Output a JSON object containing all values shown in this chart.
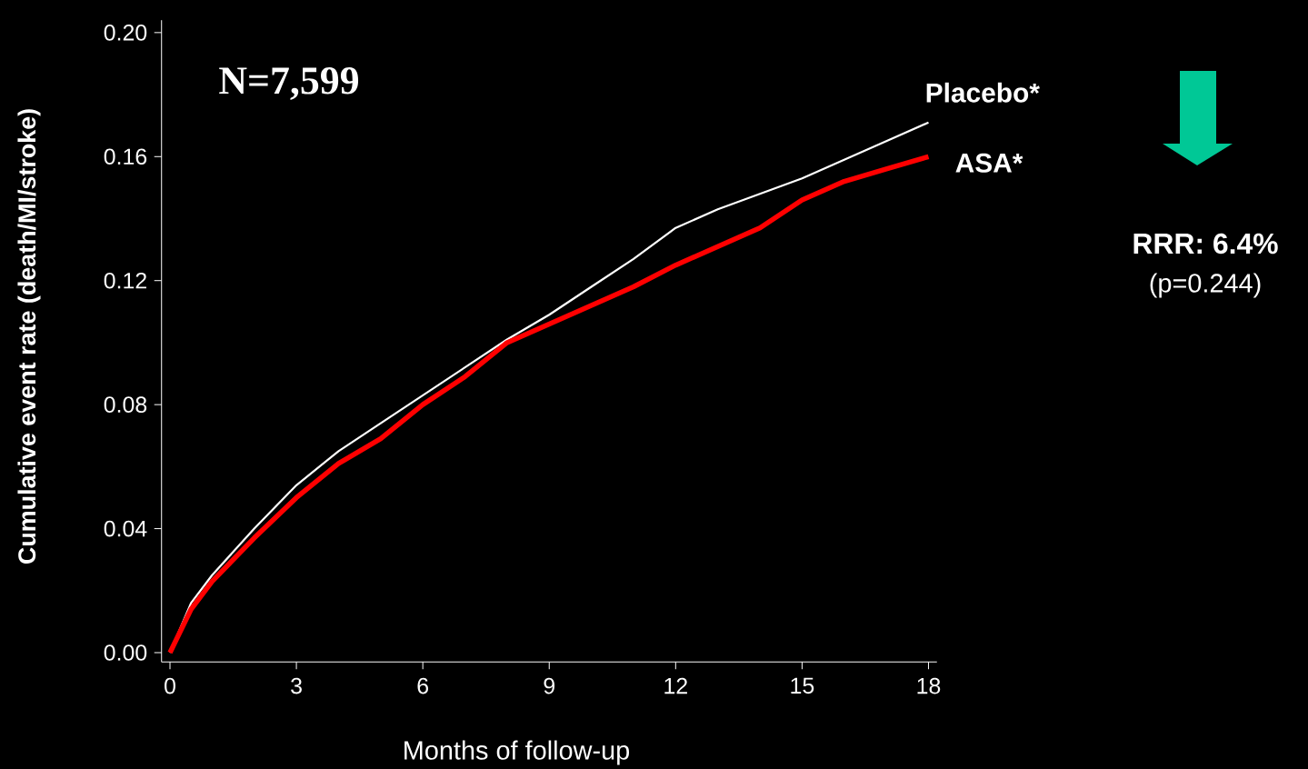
{
  "chart_data": {
    "type": "line",
    "xlabel": "Months of follow-up",
    "ylabel": "Cumulative event rate (death/MI/stroke)",
    "x": [
      0,
      0.5,
      1,
      2,
      3,
      4,
      5,
      6,
      7,
      8,
      9,
      10,
      11,
      12,
      13,
      14,
      15,
      16,
      17,
      18
    ],
    "series": [
      {
        "name": "Placebo*",
        "color": "#ffffff",
        "values": [
          0,
          0.016,
          0.025,
          0.04,
          0.054,
          0.065,
          0.074,
          0.083,
          0.092,
          0.101,
          0.109,
          0.118,
          0.127,
          0.137,
          0.143,
          0.148,
          0.153,
          0.159,
          0.165,
          0.171
        ]
      },
      {
        "name": "ASA*",
        "color": "#ff0000",
        "values": [
          0,
          0.014,
          0.023,
          0.037,
          0.05,
          0.061,
          0.069,
          0.08,
          0.089,
          0.1,
          0.106,
          0.112,
          0.118,
          0.125,
          0.131,
          0.137,
          0.146,
          0.152,
          0.156,
          0.16
        ]
      }
    ],
    "xlim": [
      -0.2,
      18.2
    ],
    "ylim": [
      -0.003,
      0.204
    ],
    "xticks": [
      0,
      3,
      6,
      9,
      12,
      15,
      18
    ],
    "yticks": [
      {
        "value": 0,
        "label": "0.00"
      },
      {
        "value": 0.04,
        "label": "0.04"
      },
      {
        "value": 0.08,
        "label": "0.08"
      },
      {
        "value": 0.12,
        "label": "0.12"
      },
      {
        "value": 0.16,
        "label": "0.16"
      },
      {
        "value": 0.2,
        "label": "0.20"
      }
    ],
    "annotations": [
      "N=7,599",
      "RRR: 6.4%",
      "(p=0.244)"
    ],
    "marker": "none",
    "line_style": "solid"
  }
}
